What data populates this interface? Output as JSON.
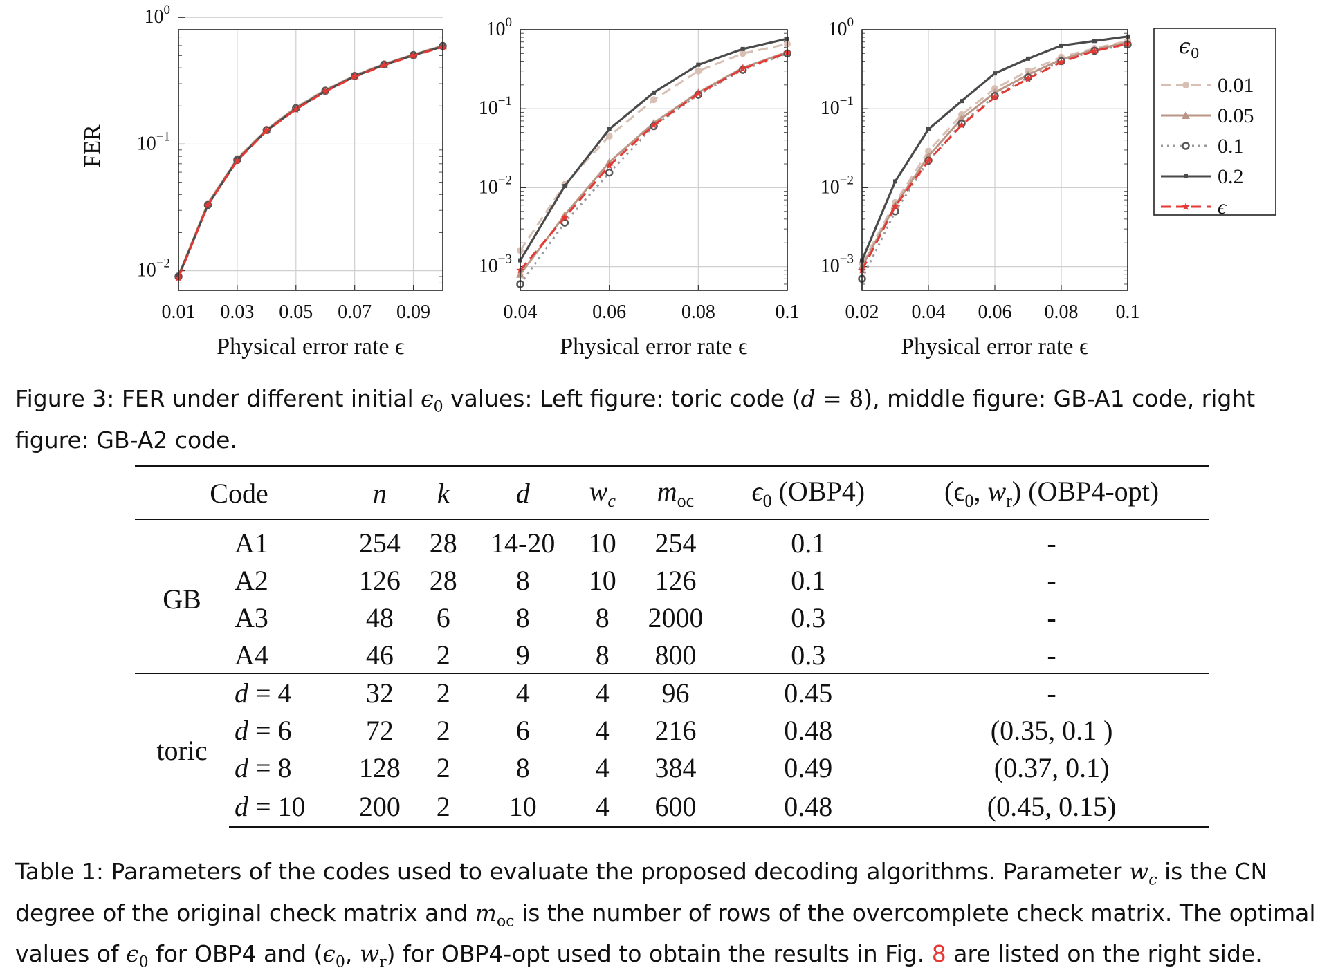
{
  "chart_data": [
    {
      "type": "line",
      "title": "",
      "xlabel": "Physical error rate ϵ",
      "ylabel": "FER",
      "xlim": [
        0.01,
        0.1
      ],
      "xticks": [
        "0.01",
        "0.03",
        "0.05",
        "0.07",
        "0.09"
      ],
      "ylim": [
        0.007,
        0.8
      ],
      "yscale": "log",
      "yticks": [
        "10^0",
        "10^-1",
        "10^-2"
      ],
      "grid": true,
      "x": [
        0.01,
        0.02,
        0.03,
        0.04,
        0.05,
        0.06,
        0.07,
        0.08,
        0.09,
        0.1
      ],
      "series": [
        {
          "name": "0.01",
          "values": [
            0.0092,
            0.034,
            0.077,
            0.131,
            0.195,
            0.268,
            0.35,
            0.43,
            0.51,
            0.6
          ]
        },
        {
          "name": "0.05",
          "values": [
            0.0091,
            0.034,
            0.076,
            0.13,
            0.194,
            0.266,
            0.347,
            0.428,
            0.508,
            0.598
          ]
        },
        {
          "name": "0.1",
          "values": [
            0.009,
            0.033,
            0.075,
            0.129,
            0.192,
            0.264,
            0.345,
            0.425,
            0.505,
            0.595
          ]
        },
        {
          "name": "0.2",
          "values": [
            0.009,
            0.033,
            0.075,
            0.128,
            0.19,
            0.262,
            0.343,
            0.423,
            0.503,
            0.59
          ]
        },
        {
          "name": "ϵ",
          "values": [
            0.0088,
            0.033,
            0.074,
            0.127,
            0.188,
            0.26,
            0.34,
            0.42,
            0.5,
            0.585
          ]
        }
      ]
    },
    {
      "type": "line",
      "title": "",
      "xlabel": "Physical error rate ϵ",
      "ylabel": "",
      "xlim": [
        0.04,
        0.1
      ],
      "xticks": [
        "0.04",
        "0.06",
        "0.08",
        "0.1"
      ],
      "ylim": [
        0.0005,
        1
      ],
      "yscale": "log",
      "yticks": [
        "10^0",
        "10^-1",
        "10^-2",
        "10^-3"
      ],
      "grid": true,
      "x": [
        0.04,
        0.05,
        0.06,
        0.07,
        0.08,
        0.09,
        0.1
      ],
      "series": [
        {
          "name": "0.01",
          "values": [
            0.0016,
            0.011,
            0.045,
            0.13,
            0.3,
            0.5,
            0.66
          ]
        },
        {
          "name": "0.05",
          "values": [
            0.0008,
            0.0045,
            0.021,
            0.066,
            0.16,
            0.33,
            0.52
          ]
        },
        {
          "name": "0.1",
          "values": [
            0.0006,
            0.0036,
            0.0155,
            0.06,
            0.15,
            0.31,
            0.5
          ]
        },
        {
          "name": "0.2",
          "values": [
            0.0012,
            0.0105,
            0.055,
            0.16,
            0.36,
            0.57,
            0.77
          ]
        },
        {
          "name": "ϵ",
          "values": [
            0.0009,
            0.0042,
            0.019,
            0.062,
            0.155,
            0.32,
            0.51
          ]
        }
      ]
    },
    {
      "type": "line",
      "title": "",
      "xlabel": "Physical error rate ϵ",
      "ylabel": "",
      "xlim": [
        0.02,
        0.1
      ],
      "xticks": [
        "0.02",
        "0.04",
        "0.06",
        "0.08",
        "0.1"
      ],
      "ylim": [
        0.0005,
        1
      ],
      "yscale": "log",
      "yticks": [
        "10^0",
        "10^-1",
        "10^-2",
        "10^-3"
      ],
      "grid": true,
      "x": [
        0.02,
        0.03,
        0.04,
        0.05,
        0.06,
        0.07,
        0.08,
        0.09,
        0.1
      ],
      "series": [
        {
          "name": "0.01",
          "values": [
            0.0011,
            0.0065,
            0.029,
            0.084,
            0.18,
            0.3,
            0.45,
            0.58,
            0.72
          ]
        },
        {
          "name": "0.05",
          "values": [
            0.001,
            0.006,
            0.025,
            0.075,
            0.16,
            0.27,
            0.42,
            0.56,
            0.69
          ]
        },
        {
          "name": "0.1",
          "values": [
            0.0007,
            0.005,
            0.022,
            0.065,
            0.145,
            0.25,
            0.4,
            0.54,
            0.65
          ]
        },
        {
          "name": "0.2",
          "values": [
            0.0012,
            0.012,
            0.055,
            0.125,
            0.28,
            0.43,
            0.63,
            0.72,
            0.82
          ]
        },
        {
          "name": "ϵ",
          "values": [
            0.0009,
            0.0058,
            0.022,
            0.062,
            0.14,
            0.24,
            0.39,
            0.54,
            0.66
          ]
        }
      ]
    }
  ],
  "legend": {
    "title": "ϵ0",
    "entries": [
      {
        "label": "0.01",
        "color": "#d8bfb4",
        "dash": "dashed",
        "marker": "circle-filled"
      },
      {
        "label": "0.05",
        "color": "#b99686",
        "dash": "solid",
        "marker": "triangle"
      },
      {
        "label": "0.1",
        "color": "#9a9a9a",
        "dash": "dotted",
        "marker": "circle-open"
      },
      {
        "label": "0.2",
        "color": "#4a4a4a",
        "dash": "solid",
        "marker": "square-small"
      },
      {
        "label": "ϵ",
        "color": "#e53935",
        "dash": "dashed",
        "marker": "star"
      }
    ]
  },
  "figure_caption": {
    "prefix": "Figure 3:  FER under different initial ",
    "symbol": "ϵ",
    "sub": "0",
    "middle": " values:  Left figure:  toric code (",
    "d": "d",
    "eq": " = 8",
    "suffix": "), middle figure:  GB-A1 code, right figure:  GB-A2 code."
  },
  "table": {
    "headers": {
      "code": "Code",
      "n": "n",
      "k": "k",
      "d": "d",
      "wc": "w",
      "wc_sub": "c",
      "moc": "m",
      "moc_sub": "oc",
      "eps_obp4": "ϵ",
      "eps_obp4_sub": "0",
      "eps_obp4_suffix": " (OBP4)",
      "opt_open": "(ϵ",
      "opt_sub0": "0",
      "opt_comma": ", ",
      "opt_w": "w",
      "opt_wsub": "r",
      "opt_close": ") (OBP4-opt)"
    },
    "groups": [
      {
        "name": "GB",
        "rows": [
          {
            "code": "A1",
            "n": "254",
            "k": "28",
            "d": "14-20",
            "wc": "10",
            "moc": "254",
            "eps": "0.1",
            "opt": "-"
          },
          {
            "code": "A2",
            "n": "126",
            "k": "28",
            "d": "8",
            "wc": "10",
            "moc": "126",
            "eps": "0.1",
            "opt": "-"
          },
          {
            "code": "A3",
            "n": "48",
            "k": "6",
            "d": "8",
            "wc": "8",
            "moc": "2000",
            "eps": "0.3",
            "opt": "-"
          },
          {
            "code": "A4",
            "n": "46",
            "k": "2",
            "d": "9",
            "wc": "8",
            "moc": "800",
            "eps": "0.3",
            "opt": "-"
          }
        ]
      },
      {
        "name": "toric",
        "rows": [
          {
            "code_var": "d",
            "code_val": " = 4",
            "n": "32",
            "k": "2",
            "d": "4",
            "wc": "4",
            "moc": "96",
            "eps": "0.45",
            "opt": "-"
          },
          {
            "code_var": "d",
            "code_val": " = 6",
            "n": "72",
            "k": "2",
            "d": "6",
            "wc": "4",
            "moc": "216",
            "eps": "0.48",
            "opt": "(0.35, 0.1 )"
          },
          {
            "code_var": "d",
            "code_val": " = 8",
            "n": "128",
            "k": "2",
            "d": "8",
            "wc": "4",
            "moc": "384",
            "eps": "0.49",
            "opt": "(0.37, 0.1)"
          },
          {
            "code_var": "d",
            "code_val": " = 10",
            "n": "200",
            "k": "2",
            "d": "10",
            "wc": "4",
            "moc": "600",
            "eps": "0.48",
            "opt": "(0.45, 0.15)"
          }
        ]
      }
    ]
  },
  "table_caption": {
    "p1": "Table 1:  Parameters of the codes used to evaluate the proposed decoding algorithms.  Parameter ",
    "wc": "w",
    "wc_sub": "c",
    "p2": " is the CN degree of the original check matrix and ",
    "moc": "m",
    "moc_sub": "oc",
    "p3": " is the number of rows of the overcomplete check matrix.  The optimal values of ",
    "eps": "ϵ",
    "eps_sub": "0",
    "p4": " for OBP4 and (",
    "eps2": "ϵ",
    "eps2_sub": "0",
    "p5": ", ",
    "wr": "w",
    "wr_sub": "r",
    "p6": ") for OBP4-opt used to obtain the results in Fig. ",
    "ref": "8",
    "p7": " are listed on the right side."
  }
}
